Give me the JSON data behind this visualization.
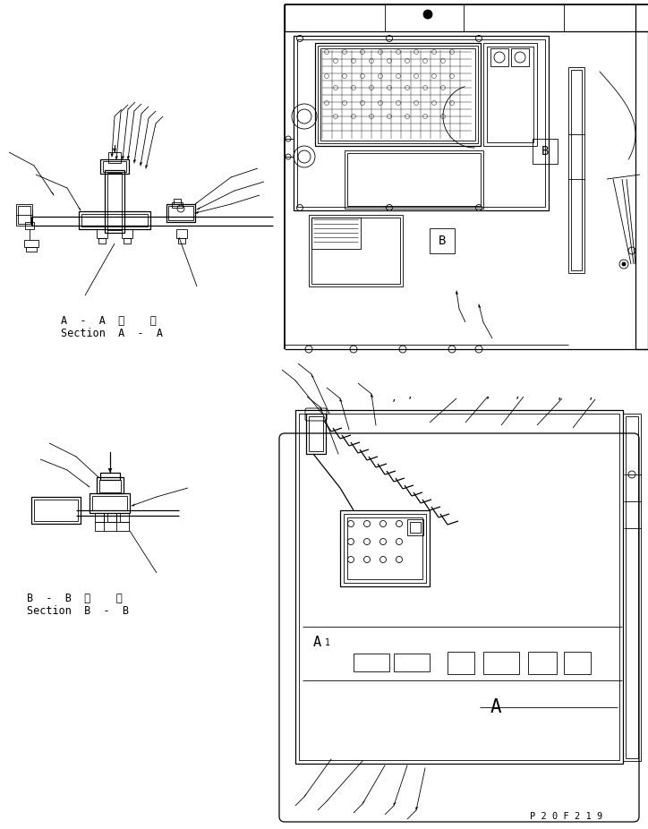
{
  "bg_color": "#ffffff",
  "line_color": "#000000",
  "text_color": "#000000",
  "label_aa_line1": "A  -  A  断    面",
  "label_aa_line2": "Section  A  -  A",
  "label_bb_line1": "B  -  B  断    面",
  "label_bb_line2": "Section  B  -  B",
  "page_number": "P 2 0 F 2 1 9",
  "font_size_label": 8.5,
  "font_size_page": 7.5
}
